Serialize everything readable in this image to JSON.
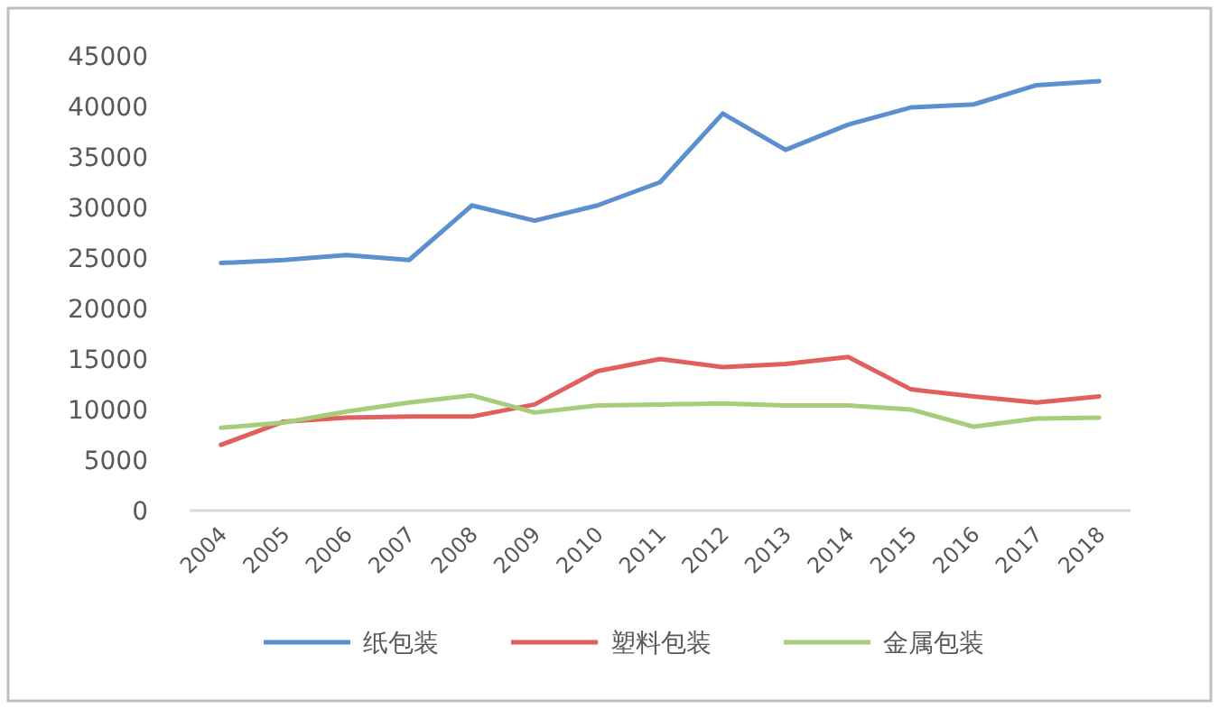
{
  "chart_data": {
    "type": "line",
    "categories": [
      "2004",
      "2005",
      "2006",
      "2007",
      "2008",
      "2009",
      "2010",
      "2011",
      "2012",
      "2013",
      "2014",
      "2015",
      "2016",
      "2017",
      "2018"
    ],
    "ylim": [
      0,
      45000
    ],
    "yticks": [
      0,
      5000,
      10000,
      15000,
      20000,
      25000,
      30000,
      35000,
      40000,
      45000
    ],
    "grid": false,
    "legend": "bottom",
    "series": [
      {
        "name": "纸包装",
        "color": "#5b8fcf",
        "values": [
          24500,
          24800,
          25300,
          24800,
          30200,
          28700,
          30200,
          32500,
          39300,
          35700,
          38200,
          39900,
          40200,
          42100,
          42500
        ]
      },
      {
        "name": "塑料包装",
        "color": "#e0605e",
        "values": [
          6500,
          8800,
          9200,
          9300,
          9300,
          10500,
          13800,
          15000,
          14200,
          14500,
          15200,
          12000,
          11300,
          10700,
          11300
        ]
      },
      {
        "name": "金属包装",
        "color": "#a5cd7a",
        "values": [
          8200,
          8700,
          9800,
          10700,
          11400,
          9700,
          10400,
          10500,
          10600,
          10400,
          10400,
          10000,
          8300,
          9100,
          9200
        ]
      }
    ]
  }
}
